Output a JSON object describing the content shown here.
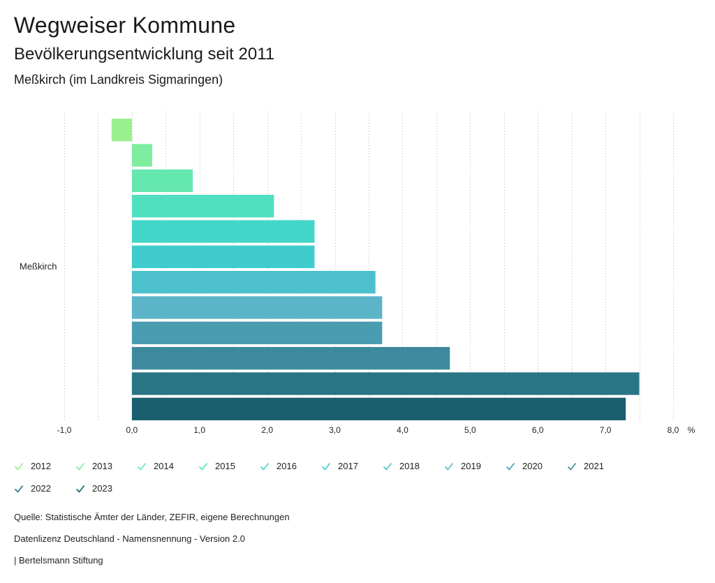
{
  "header": {
    "title": "Wegweiser Kommune",
    "subtitle": "Bevölkerungsentwicklung seit 2011",
    "region": "Meßkirch (im Landkreis Sigmaringen)"
  },
  "chart_data": {
    "type": "bar",
    "orientation": "horizontal",
    "categories": [
      "Meßkirch"
    ],
    "series": [
      {
        "name": "2012",
        "values": [
          -0.3
        ],
        "color": "#9af08e"
      },
      {
        "name": "2013",
        "values": [
          0.3
        ],
        "color": "#7eeda0"
      },
      {
        "name": "2014",
        "values": [
          0.9
        ],
        "color": "#64e8b0"
      },
      {
        "name": "2015",
        "values": [
          2.1
        ],
        "color": "#50e0c0"
      },
      {
        "name": "2016",
        "values": [
          2.7
        ],
        "color": "#42d6c8"
      },
      {
        "name": "2017",
        "values": [
          2.7
        ],
        "color": "#40cccc"
      },
      {
        "name": "2018",
        "values": [
          3.6
        ],
        "color": "#4cc0cc"
      },
      {
        "name": "2019",
        "values": [
          3.7
        ],
        "color": "#5cb4c8"
      },
      {
        "name": "2020",
        "values": [
          3.7
        ],
        "color": "#4a9cb0"
      },
      {
        "name": "2021",
        "values": [
          4.7
        ],
        "color": "#3d8a9e"
      },
      {
        "name": "2022",
        "values": [
          7.5
        ],
        "color": "#2a7585"
      },
      {
        "name": "2023",
        "values": [
          7.3
        ],
        "color": "#195f6e"
      }
    ],
    "xlim": [
      -1.0,
      8.0
    ],
    "xticks": [
      "-1,0",
      "0,0",
      "1,0",
      "2,0",
      "3,0",
      "4,0",
      "5,0",
      "6,0",
      "7,0",
      "8,0"
    ],
    "xunit": "%",
    "grid": true,
    "legend_position": "bottom"
  },
  "footer": {
    "source": "Quelle: Statistische Ämter der Länder, ZEFIR, eigene Berechnungen",
    "license": "Datenlizenz Deutschland - Namensnennung - Version 2.0",
    "publisher": "| Bertelsmann Stiftung"
  }
}
